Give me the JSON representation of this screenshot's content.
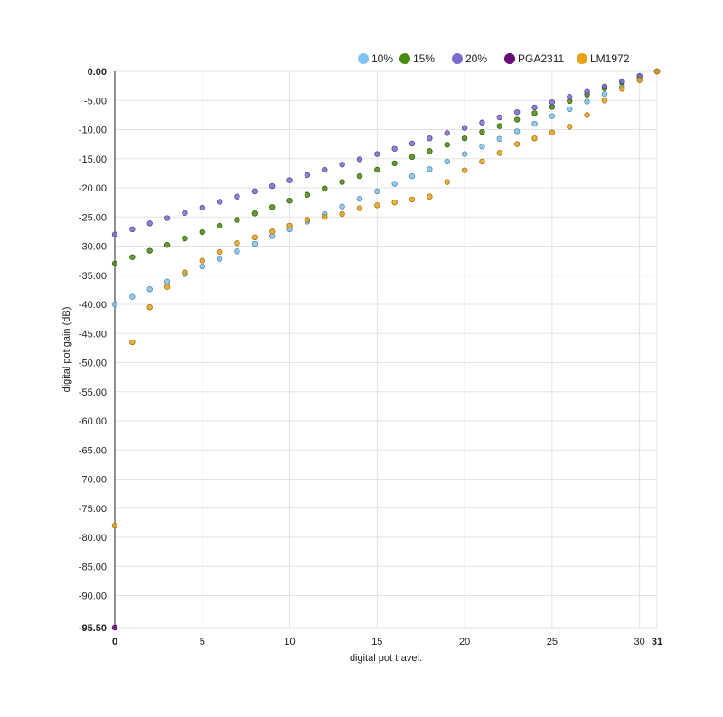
{
  "chart_data": {
    "type": "scatter",
    "xlabel": "digital pot travel.",
    "ylabel": "digital pot gain (dB)",
    "xlim": [
      0,
      31
    ],
    "ylim": [
      -95.5,
      0
    ],
    "grid": true,
    "legend_position": "top-right",
    "x_ticks": [
      "0",
      "5",
      "10",
      "15",
      "20",
      "25",
      "30",
      "31"
    ],
    "x_tick_values": [
      0,
      5,
      10,
      15,
      20,
      25,
      30,
      31
    ],
    "y_ticks": [
      "0.00",
      "-5.00",
      "-10.00",
      "-15.00",
      "-20.00",
      "-25.00",
      "-30.00",
      "-35.00",
      "-40.00",
      "-45.00",
      "-50.00",
      "-55.00",
      "-60.00",
      "-65.00",
      "-70.00",
      "-75.00",
      "-80.00",
      "-85.00",
      "-90.00",
      "-95.50"
    ],
    "y_tick_values": [
      0,
      -5,
      -10,
      -15,
      -20,
      -25,
      -30,
      -35,
      -40,
      -45,
      -50,
      -55,
      -60,
      -65,
      -70,
      -75,
      -80,
      -85,
      -90,
      -95.5
    ],
    "series": [
      {
        "name": "10%",
        "color": "#7ec3f0",
        "x": [
          0,
          1,
          2,
          3,
          4,
          5,
          6,
          7,
          8,
          9,
          10,
          11,
          12,
          13,
          14,
          15,
          16,
          17,
          18,
          19,
          20,
          21,
          22,
          23,
          24,
          25,
          26,
          27,
          28,
          29,
          30,
          31
        ],
        "y": [
          -40.0,
          -38.7,
          -37.4,
          -36.1,
          -34.8,
          -33.5,
          -32.2,
          -30.9,
          -29.6,
          -28.3,
          -27.1,
          -25.8,
          -24.5,
          -23.2,
          -21.9,
          -20.6,
          -19.3,
          -18.0,
          -16.8,
          -15.5,
          -14.2,
          -12.9,
          -11.6,
          -10.3,
          -9.0,
          -7.7,
          -6.5,
          -5.2,
          -3.9,
          -2.6,
          -1.3,
          0.0
        ]
      },
      {
        "name": "15%",
        "color": "#4a8a10",
        "x": [
          0,
          1,
          2,
          3,
          4,
          5,
          6,
          7,
          8,
          9,
          10,
          11,
          12,
          13,
          14,
          15,
          16,
          17,
          18,
          19,
          20,
          21,
          22,
          23,
          24,
          25,
          26,
          27,
          28,
          29,
          30,
          31
        ],
        "y": [
          -33.0,
          -31.9,
          -30.8,
          -29.8,
          -28.7,
          -27.6,
          -26.5,
          -25.5,
          -24.4,
          -23.3,
          -22.2,
          -21.2,
          -20.1,
          -19.0,
          -18.0,
          -16.9,
          -15.8,
          -14.7,
          -13.7,
          -12.6,
          -11.5,
          -10.4,
          -9.4,
          -8.3,
          -7.2,
          -6.1,
          -5.1,
          -4.0,
          -2.9,
          -1.9,
          -0.8,
          0.0
        ]
      },
      {
        "name": "20%",
        "color": "#7b6bcf",
        "x": [
          0,
          1,
          2,
          3,
          4,
          5,
          6,
          7,
          8,
          9,
          10,
          11,
          12,
          13,
          14,
          15,
          16,
          17,
          18,
          19,
          20,
          21,
          22,
          23,
          24,
          25,
          26,
          27,
          28,
          29,
          30,
          31
        ],
        "y": [
          -28.0,
          -27.1,
          -26.1,
          -25.2,
          -24.3,
          -23.4,
          -22.4,
          -21.5,
          -20.6,
          -19.7,
          -18.7,
          -17.8,
          -16.9,
          -16.0,
          -15.1,
          -14.2,
          -13.3,
          -12.4,
          -11.5,
          -10.6,
          -9.7,
          -8.8,
          -7.9,
          -7.0,
          -6.2,
          -5.3,
          -4.4,
          -3.5,
          -2.6,
          -1.7,
          -0.8,
          0.0
        ]
      },
      {
        "name": "PGA2311",
        "color": "#6a0a7a",
        "x": [
          0
        ],
        "y": [
          -95.5
        ]
      },
      {
        "name": "LM1972",
        "color": "#e8a317",
        "x": [
          0,
          1,
          2,
          3,
          4,
          5,
          6,
          7,
          8,
          9,
          10,
          11,
          12,
          13,
          14,
          15,
          16,
          17,
          18,
          19,
          20,
          21,
          22,
          23,
          24,
          25,
          26,
          27,
          28,
          29,
          30,
          31
        ],
        "y": [
          -78.0,
          -46.5,
          -40.5,
          -37.0,
          -34.5,
          -32.5,
          -31.0,
          -29.5,
          -28.5,
          -27.5,
          -26.5,
          -25.5,
          -25.0,
          -24.5,
          -23.5,
          -23.0,
          -22.5,
          -22.0,
          -21.5,
          -19.0,
          -17.0,
          -15.5,
          -14.0,
          -12.5,
          -11.5,
          -10.5,
          -9.5,
          -7.5,
          -5.0,
          -3.0,
          -1.5,
          0.0
        ]
      }
    ]
  }
}
